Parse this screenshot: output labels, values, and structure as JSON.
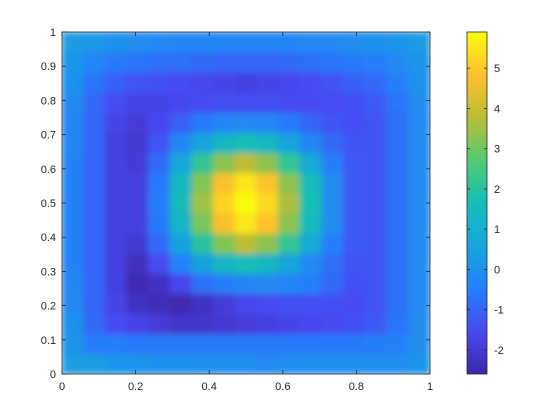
{
  "chart_data": {
    "type": "heatmap",
    "title": "",
    "xlabel": "",
    "ylabel": "",
    "xlim": [
      0,
      1
    ],
    "ylim": [
      0,
      1
    ],
    "x_ticks": [
      "0",
      "0.2",
      "0.4",
      "0.6",
      "0.8",
      "1"
    ],
    "y_ticks": [
      "0",
      "0.1",
      "0.2",
      "0.3",
      "0.4",
      "0.5",
      "0.6",
      "0.7",
      "0.8",
      "0.9",
      "1"
    ],
    "grid": false,
    "colormap": "parula",
    "colorbar": {
      "location": "right",
      "clim": [
        -2.6,
        5.9
      ],
      "ticks": [
        "-2",
        "-1",
        "0",
        "1",
        "2",
        "3",
        "4",
        "5"
      ],
      "tick_values": [
        -2,
        -1,
        0,
        1,
        2,
        3,
        4,
        5
      ]
    },
    "grid_size": 17,
    "z": [
      [
        0.3,
        0.3,
        0.1,
        0.1,
        0.0,
        0.0,
        -0.1,
        -0.1,
        -0.1,
        -0.2,
        -0.1,
        -0.1,
        -0.1,
        -0.1,
        -0.1,
        -0.1,
        0.1
      ],
      [
        0.1,
        -0.5,
        -0.5,
        -0.6,
        -0.6,
        -0.6,
        -0.6,
        -0.6,
        -0.6,
        -0.6,
        -0.6,
        -0.6,
        -0.6,
        -0.6,
        -0.5,
        -0.4,
        -0.1
      ],
      [
        0.0,
        -0.9,
        -1.5,
        -1.7,
        -1.9,
        -2.1,
        -2.1,
        -2.0,
        -1.9,
        -1.8,
        -1.7,
        -1.6,
        -1.5,
        -1.4,
        -1.2,
        -0.7,
        -0.1
      ],
      [
        -0.2,
        -1.0,
        -1.7,
        -2.2,
        -2.4,
        -2.5,
        -2.2,
        -1.9,
        -1.6,
        -1.5,
        -1.4,
        -1.4,
        -1.4,
        -1.5,
        -1.3,
        -0.8,
        -0.2
      ],
      [
        -0.3,
        -1.0,
        -1.8,
        -2.5,
        -2.2,
        -1.6,
        -0.8,
        -0.5,
        -0.3,
        -0.2,
        -0.3,
        -0.5,
        -0.9,
        -1.4,
        -1.3,
        -0.8,
        -0.2
      ],
      [
        -0.4,
        -1.0,
        -1.8,
        -2.3,
        -1.5,
        -0.4,
        0.5,
        1.3,
        1.6,
        1.3,
        0.6,
        -0.2,
        -0.8,
        -1.3,
        -1.3,
        -0.8,
        -0.2
      ],
      [
        -0.4,
        -1.0,
        -1.8,
        -2.0,
        -0.9,
        0.5,
        2.0,
        3.2,
        3.8,
        3.3,
        2.2,
        0.8,
        -0.5,
        -1.2,
        -1.3,
        -0.8,
        -0.2
      ],
      [
        -0.4,
        -1.0,
        -1.8,
        -1.8,
        -0.6,
        1.2,
        3.1,
        4.8,
        5.5,
        4.9,
        3.3,
        1.5,
        -0.1,
        -1.2,
        -1.3,
        -0.8,
        -0.2
      ],
      [
        -0.4,
        -1.0,
        -1.8,
        -1.8,
        -0.5,
        1.5,
        3.5,
        5.2,
        5.9,
        5.3,
        3.6,
        1.7,
        -0.1,
        -1.2,
        -1.3,
        -0.8,
        -0.2
      ],
      [
        -0.4,
        -1.0,
        -1.8,
        -1.8,
        -0.6,
        1.3,
        3.2,
        4.8,
        5.5,
        4.9,
        3.3,
        1.6,
        -0.1,
        -1.2,
        -1.3,
        -0.8,
        -0.2
      ],
      [
        -0.4,
        -1.0,
        -1.8,
        -1.9,
        -0.9,
        0.7,
        2.2,
        3.3,
        3.8,
        3.3,
        2.2,
        0.8,
        -0.5,
        -1.2,
        -1.3,
        -0.8,
        -0.2
      ],
      [
        -0.3,
        -1.0,
        -1.8,
        -2.0,
        -1.3,
        -0.3,
        0.6,
        1.3,
        1.6,
        1.3,
        0.6,
        -0.3,
        -0.9,
        -1.3,
        -1.3,
        -0.8,
        -0.2
      ],
      [
        -0.3,
        -1.0,
        -1.7,
        -1.9,
        -1.6,
        -1.1,
        -0.6,
        -0.3,
        -0.2,
        -0.3,
        -0.6,
        -1.0,
        -1.3,
        -1.4,
        -1.3,
        -0.8,
        -0.2
      ],
      [
        -0.2,
        -0.9,
        -1.5,
        -1.7,
        -1.7,
        -1.6,
        -1.5,
        -1.4,
        -1.4,
        -1.4,
        -1.5,
        -1.5,
        -1.5,
        -1.4,
        -1.2,
        -0.7,
        -0.1
      ],
      [
        0.0,
        -0.7,
        -1.1,
        -1.3,
        -1.4,
        -1.5,
        -1.6,
        -1.7,
        -1.8,
        -1.7,
        -1.6,
        -1.5,
        -1.3,
        -1.1,
        -0.9,
        -0.5,
        0.0
      ],
      [
        0.1,
        -0.3,
        -0.6,
        -0.7,
        -0.8,
        -0.8,
        -0.9,
        -1.0,
        -1.0,
        -1.0,
        -0.9,
        -0.8,
        -0.7,
        -0.6,
        -0.5,
        -0.2,
        0.1
      ],
      [
        0.3,
        0.2,
        0.0,
        -0.1,
        -0.2,
        -0.3,
        -0.3,
        -0.3,
        -0.3,
        -0.3,
        -0.3,
        -0.2,
        -0.2,
        -0.1,
        0.0,
        0.1,
        0.3
      ]
    ]
  }
}
